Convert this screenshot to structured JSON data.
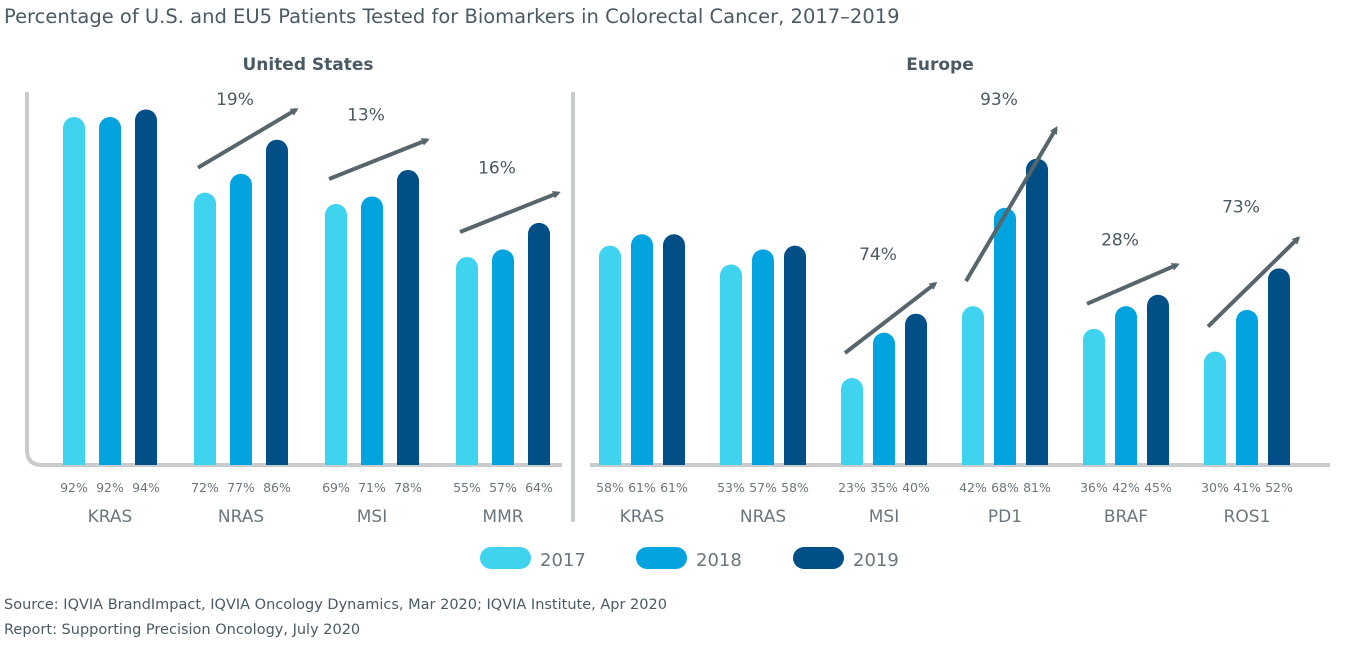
{
  "title": "Percentage of U.S. and EU5 Patients Tested for Biomarkers in Colorectal Cancer, 2017–2019",
  "colors": {
    "2017": "#3fd3f0",
    "2018": "#03a3df",
    "2019": "#005087",
    "axis": "#c8cccf",
    "arrow": "#57656c"
  },
  "legend": [
    "2017",
    "2018",
    "2019"
  ],
  "chart_data": [
    {
      "type": "bar",
      "title": "United States",
      "categories": [
        "KRAS",
        "NRAS",
        "MSI",
        "MMR"
      ],
      "series": [
        {
          "name": "2017",
          "values": [
            92,
            72,
            69,
            55
          ]
        },
        {
          "name": "2018",
          "values": [
            92,
            77,
            71,
            57
          ]
        },
        {
          "name": "2019",
          "values": [
            94,
            86,
            78,
            64
          ]
        }
      ],
      "value_labels": [
        [
          "92%",
          "92%",
          "94%"
        ],
        [
          "72%",
          "77%",
          "86%"
        ],
        [
          "69%",
          "71%",
          "78%"
        ],
        [
          "55%",
          "57%",
          "64%"
        ]
      ],
      "growth": [
        null,
        "19%",
        "13%",
        "16%"
      ],
      "ylim": [
        0,
        100
      ]
    },
    {
      "type": "bar",
      "title": "Europe",
      "categories": [
        "KRAS",
        "NRAS",
        "MSI",
        "PD1",
        "BRAF",
        "ROS1"
      ],
      "series": [
        {
          "name": "2017",
          "values": [
            58,
            53,
            23,
            42,
            36,
            30
          ]
        },
        {
          "name": "2018",
          "values": [
            61,
            57,
            35,
            68,
            42,
            41
          ]
        },
        {
          "name": "2019",
          "values": [
            61,
            58,
            40,
            81,
            45,
            52
          ]
        }
      ],
      "value_labels": [
        [
          "58%",
          "61%",
          "61%"
        ],
        [
          "53%",
          "57%",
          "58%"
        ],
        [
          "23%",
          "35%",
          "40%"
        ],
        [
          "42%",
          "68%",
          "81%"
        ],
        [
          "36%",
          "42%",
          "45%"
        ],
        [
          "30%",
          "41%",
          "52%"
        ]
      ],
      "growth": [
        null,
        null,
        "74%",
        "93%",
        "28%",
        "73%"
      ],
      "ylim": [
        0,
        100
      ]
    }
  ],
  "footer": {
    "source": "Source: IQVIA BrandImpact, IQVIA Oncology Dynamics, Mar 2020; IQVIA Institute, Apr 2020",
    "report": "Report: Supporting Precision Oncology, July 2020"
  }
}
